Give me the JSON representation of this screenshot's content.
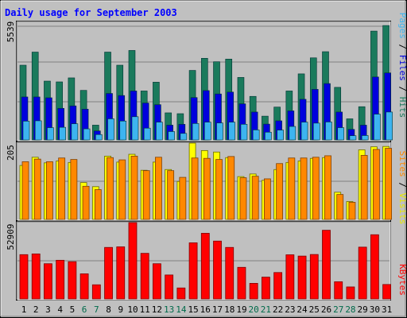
{
  "chart_data": [
    {
      "type": "bar",
      "title": "Daily usage for September 2003",
      "panel": "hits-files-pages",
      "ymax_label": "5539",
      "ylim": [
        0,
        5539
      ],
      "legend": [
        "Pages",
        "Files",
        "Hits"
      ],
      "categories": [
        "1",
        "2",
        "3",
        "4",
        "5",
        "6",
        "7",
        "8",
        "9",
        "10",
        "11",
        "12",
        "13",
        "14",
        "15",
        "16",
        "17",
        "18",
        "19",
        "20",
        "21",
        "22",
        "23",
        "24",
        "25",
        "26",
        "27",
        "28",
        "29",
        "30",
        "31"
      ],
      "weekend_days": [
        "6",
        "7",
        "13",
        "14",
        "20",
        "21",
        "27",
        "28"
      ],
      "series": [
        {
          "name": "Hits",
          "values": [
            3542,
            4163,
            2788,
            2751,
            2941,
            2349,
            701,
            4163,
            3542,
            4241,
            2320,
            2737,
            1283,
            1244,
            3295,
            3869,
            3705,
            3831,
            2962,
            2064,
            1127,
            1557,
            2320,
            3131,
            3890,
            4182,
            2492,
            1000,
            1575,
            5159,
            5422
          ]
        },
        {
          "name": "Files",
          "values": [
            2037,
            2037,
            1998,
            1497,
            1614,
            1459,
            427,
            2203,
            2105,
            2320,
            1750,
            1672,
            701,
            740,
            2009,
            2339,
            2179,
            2268,
            1712,
            1322,
            750,
            906,
            1378,
            1926,
            2398,
            2672,
            1322,
            500,
            701,
            2983,
            3176
          ]
        },
        {
          "name": "Pages",
          "values": [
            889,
            906,
            582,
            597,
            766,
            525,
            254,
            1000,
            895,
            1100,
            558,
            843,
            396,
            309,
            777,
            843,
            805,
            843,
            741,
            474,
            367,
            468,
            638,
            843,
            796,
            850,
            582,
            200,
            208,
            1222,
            1322
          ]
        }
      ]
    },
    {
      "type": "bar",
      "panel": "visits-sites",
      "ymax_label": "205",
      "ylim": [
        0,
        205
      ],
      "legend": [
        "Sites",
        "Visits"
      ],
      "categories": [
        "1",
        "2",
        "3",
        "4",
        "5",
        "6",
        "7",
        "8",
        "9",
        "10",
        "11",
        "12",
        "13",
        "14",
        "15",
        "16",
        "17",
        "18",
        "19",
        "20",
        "21",
        "22",
        "23",
        "24",
        "25",
        "26",
        "27",
        "28",
        "29",
        "30",
        "31"
      ],
      "series": [
        {
          "name": "Visits",
          "values": [
            145,
            167,
            152,
            157,
            153,
            99,
            88,
            170,
            154,
            175,
            132,
            154,
            134,
            102,
            205,
            185,
            181,
            166,
            115,
            122,
            105,
            134,
            153,
            157,
            164,
            166,
            73,
            48,
            187,
            195,
            196
          ]
        },
        {
          "name": "Sites",
          "values": [
            155,
            162,
            155,
            165,
            161,
            89,
            80,
            166,
            160,
            170,
            131,
            167,
            131,
            113,
            165,
            164,
            161,
            169,
            112,
            116,
            109,
            150,
            165,
            165,
            167,
            171,
            67,
            46,
            172,
            188,
            191
          ]
        }
      ]
    },
    {
      "type": "bar",
      "panel": "kbytes",
      "ymax_label": "52909",
      "ylim": [
        0,
        52909
      ],
      "legend": [
        "KBytes"
      ],
      "categories": [
        "1",
        "2",
        "3",
        "4",
        "5",
        "6",
        "7",
        "8",
        "9",
        "10",
        "11",
        "12",
        "13",
        "14",
        "15",
        "16",
        "17",
        "18",
        "19",
        "20",
        "21",
        "22",
        "23",
        "24",
        "25",
        "26",
        "27",
        "28",
        "29",
        "30",
        "31"
      ],
      "series": [
        {
          "name": "KBytes",
          "values": [
            30700,
            31200,
            24400,
            26800,
            25800,
            17400,
            9800,
            35700,
            36100,
            52900,
            31600,
            24400,
            16600,
            7600,
            38900,
            45500,
            40100,
            35700,
            21900,
            10800,
            15100,
            18300,
            30600,
            29700,
            30800,
            47600,
            11900,
            8300,
            35900,
            44500,
            10000
          ]
        }
      ]
    }
  ]
}
